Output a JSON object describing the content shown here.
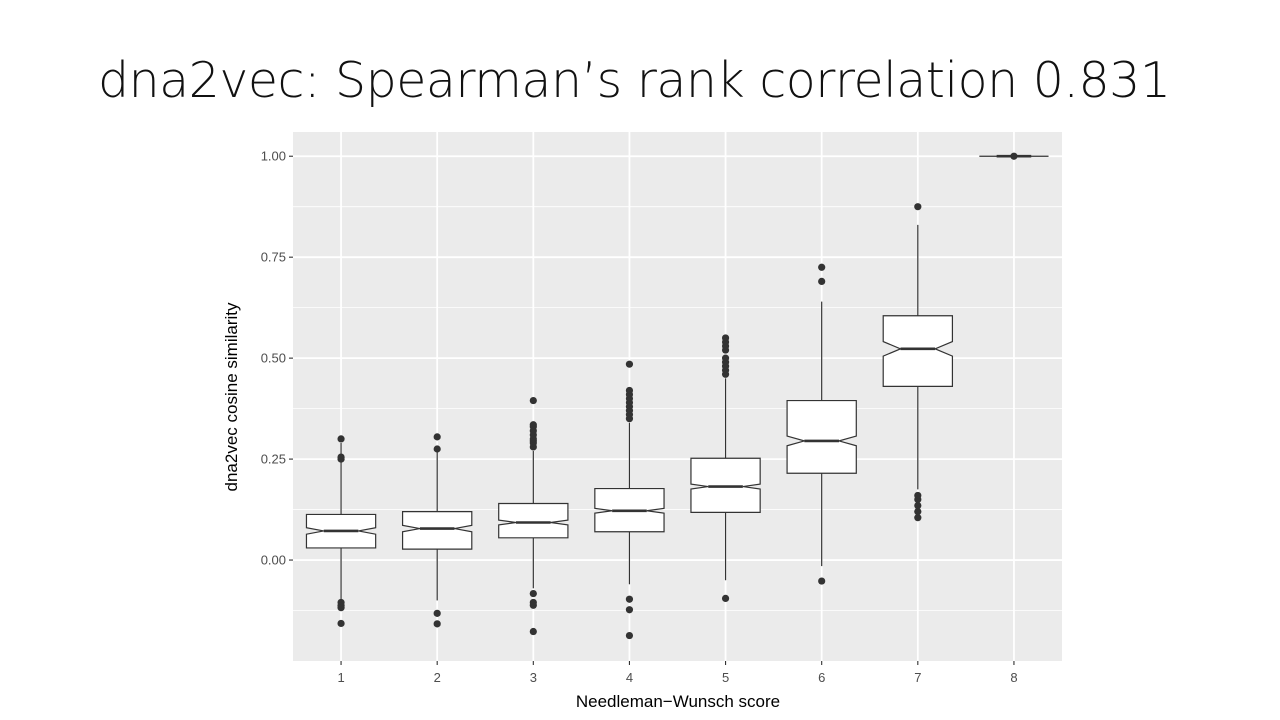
{
  "slide": {
    "title": "dna2vec: Spearman’s rank correlation 0.831"
  },
  "chart_data": {
    "type": "boxplot",
    "notched": true,
    "xlabel": "Needleman−Wunsch score",
    "ylabel": "dna2vec cosine similarity",
    "ylim": [
      -0.25,
      1.06
    ],
    "y_ticks": [
      0.0,
      0.25,
      0.5,
      0.75,
      1.0
    ],
    "y_tick_labels": [
      "0.00",
      "0.25",
      "0.50",
      "0.75",
      "1.00"
    ],
    "categories": [
      "1",
      "2",
      "3",
      "4",
      "5",
      "6",
      "7",
      "8"
    ],
    "grid": true,
    "colors": {
      "panel": "#ebebeb",
      "grid": "#ffffff",
      "box_fill": "#ffffff",
      "stroke": "#333333"
    },
    "boxes": [
      {
        "x": "1",
        "whisker_low": -0.1,
        "q1": 0.03,
        "median": 0.072,
        "q3": 0.113,
        "whisker_high": 0.29,
        "notch_low": 0.064,
        "notch_high": 0.08,
        "outliers": [
          -0.105,
          -0.113,
          -0.118,
          -0.157,
          0.25,
          0.255,
          0.3
        ]
      },
      {
        "x": "2",
        "whisker_low": -0.1,
        "q1": 0.027,
        "median": 0.078,
        "q3": 0.12,
        "whisker_high": 0.27,
        "notch_low": 0.07,
        "notch_high": 0.086,
        "outliers": [
          -0.132,
          -0.158,
          0.275,
          0.305
        ]
      },
      {
        "x": "3",
        "whisker_low": -0.07,
        "q1": 0.055,
        "median": 0.093,
        "q3": 0.14,
        "whisker_high": 0.27,
        "notch_low": 0.087,
        "notch_high": 0.099,
        "outliers": [
          -0.083,
          -0.105,
          -0.112,
          -0.177,
          0.28,
          0.29,
          0.295,
          0.3,
          0.31,
          0.32,
          0.33,
          0.335,
          0.395
        ]
      },
      {
        "x": "4",
        "whisker_low": -0.06,
        "q1": 0.07,
        "median": 0.122,
        "q3": 0.177,
        "whisker_high": 0.34,
        "notch_low": 0.116,
        "notch_high": 0.128,
        "outliers": [
          -0.097,
          -0.123,
          -0.187,
          0.35,
          0.36,
          0.37,
          0.38,
          0.39,
          0.4,
          0.41,
          0.42,
          0.485
        ]
      },
      {
        "x": "5",
        "whisker_low": -0.05,
        "q1": 0.118,
        "median": 0.182,
        "q3": 0.252,
        "whisker_high": 0.45,
        "notch_low": 0.176,
        "notch_high": 0.188,
        "outliers": [
          -0.095,
          0.46,
          0.47,
          0.48,
          0.49,
          0.5,
          0.52,
          0.53,
          0.54,
          0.55
        ]
      },
      {
        "x": "6",
        "whisker_low": -0.015,
        "q1": 0.215,
        "median": 0.295,
        "q3": 0.395,
        "whisker_high": 0.64,
        "notch_low": 0.283,
        "notch_high": 0.307,
        "outliers": [
          -0.052,
          0.69,
          0.725
        ]
      },
      {
        "x": "7",
        "whisker_low": 0.175,
        "q1": 0.43,
        "median": 0.523,
        "q3": 0.605,
        "whisker_high": 0.83,
        "notch_low": 0.505,
        "notch_high": 0.541,
        "outliers": [
          0.105,
          0.12,
          0.135,
          0.15,
          0.16,
          0.875
        ]
      },
      {
        "x": "8",
        "whisker_low": 1.0,
        "q1": 1.0,
        "median": 1.0,
        "q3": 1.0,
        "whisker_high": 1.0,
        "notch_low": 1.0,
        "notch_high": 1.0,
        "outliers": [
          1.0
        ]
      }
    ]
  }
}
